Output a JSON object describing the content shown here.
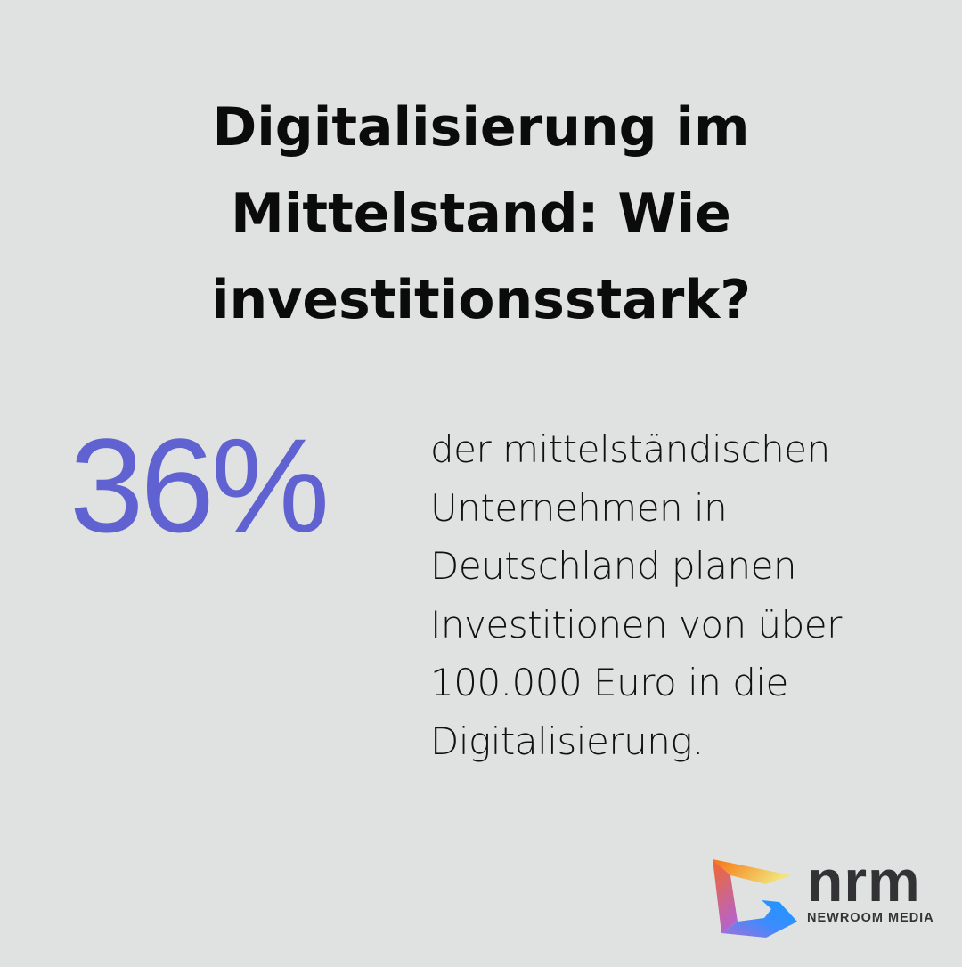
{
  "title": {
    "lines": [
      "Digitalisierung im",
      "Mittelstand: Wie",
      "investitionsstark?"
    ]
  },
  "stat": {
    "value": "36%",
    "color": "#5f62d0"
  },
  "description": {
    "lines": [
      "der mittelständischen",
      "Unternehmen in",
      "Deutschland planen",
      "Investitionen von über",
      "100.000 Euro in die",
      "Digitalisierung."
    ]
  },
  "logo": {
    "wordmark": "nrm",
    "subtitle": "NEWROOM MEDIA",
    "icon": "nrm-logo-icon"
  },
  "colors": {
    "background": "#e0e2e1",
    "accent": "#5f62d0",
    "text": "#0b0b0b"
  }
}
